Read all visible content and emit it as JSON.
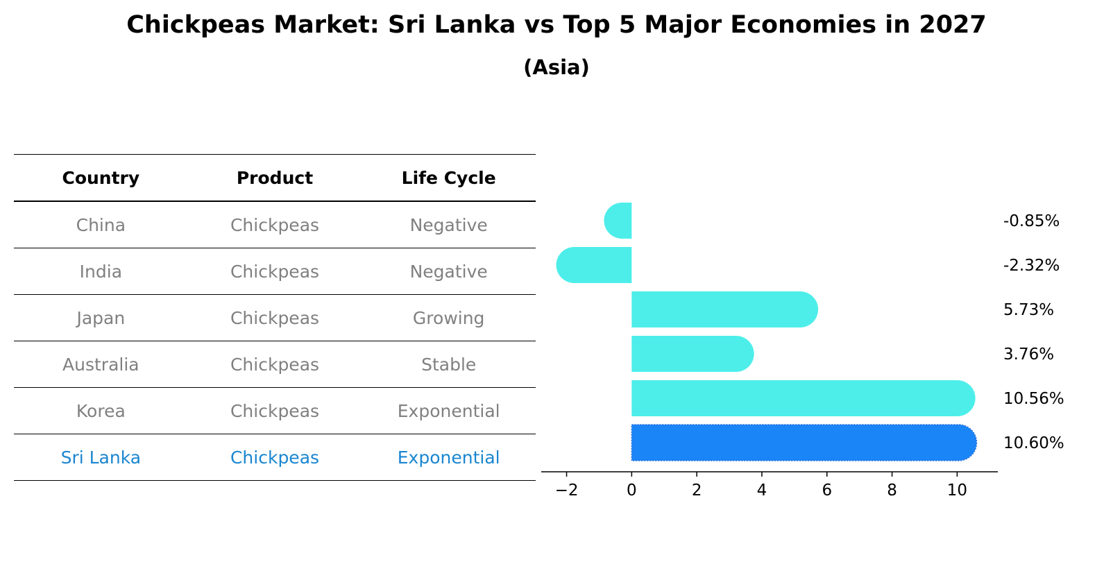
{
  "title": "Chickpeas Market: Sri Lanka vs Top 5 Major Economies in 2027",
  "subtitle": "(Asia)",
  "table": {
    "headers": [
      "Country",
      "Product",
      "Life Cycle"
    ],
    "rows": [
      {
        "country": "China",
        "product": "Chickpeas",
        "life_cycle": "Negative"
      },
      {
        "country": "India",
        "product": "Chickpeas",
        "life_cycle": "Negative"
      },
      {
        "country": "Japan",
        "product": "Chickpeas",
        "life_cycle": "Growing"
      },
      {
        "country": "Australia",
        "product": "Chickpeas",
        "life_cycle": "Stable"
      },
      {
        "country": "Korea",
        "product": "Chickpeas",
        "life_cycle": "Exponential"
      },
      {
        "country": "Sri Lanka",
        "product": "Chickpeas",
        "life_cycle": "Exponential"
      }
    ]
  },
  "chart_data": {
    "type": "bar",
    "orientation": "horizontal",
    "categories": [
      "China",
      "India",
      "Japan",
      "Australia",
      "Korea",
      "Sri Lanka"
    ],
    "values": [
      -0.85,
      -2.32,
      5.73,
      3.76,
      10.56,
      10.6
    ],
    "value_labels": [
      "-0.85%",
      "-2.32%",
      "5.73%",
      "3.76%",
      "10.56%",
      "10.60%"
    ],
    "highlight": "Sri Lanka",
    "xlim": [
      -2.95,
      11.25
    ],
    "xticks": [
      -2,
      0,
      2,
      4,
      6,
      8,
      10
    ],
    "xtick_labels": [
      "−2",
      "0",
      "2",
      "4",
      "6",
      "8",
      "10"
    ],
    "title": "",
    "xlabel": "",
    "ylabel": "",
    "grid": false,
    "colors": {
      "bar": "#4deeea",
      "highlight": "#1a85f7",
      "highlight_text": "#1a86d0",
      "axis": "#000000"
    }
  }
}
